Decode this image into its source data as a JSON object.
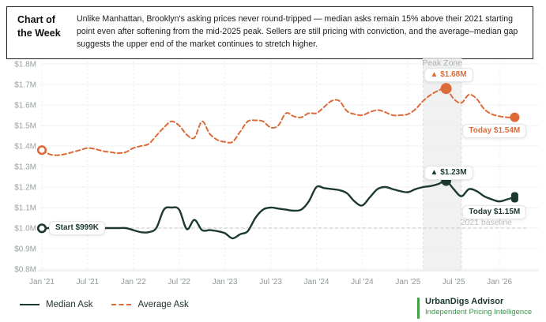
{
  "header": {
    "title": "Chart of the Week",
    "body": "Unlike Manhattan, Brooklyn's asking prices never round-tripped — median asks remain 15% above their 2021 starting point even after softening from the mid-2025 peak. Sellers are still pricing with conviction, and the average–median gap suggests the upper end of the market continues to stretch higher."
  },
  "chart_data": {
    "type": "line",
    "x_tick_labels": [
      "Jan '21",
      "Jul '21",
      "Jan '22",
      "Jul '22",
      "Jan '23",
      "Jul '23",
      "Jan '24",
      "Jul '24",
      "Jan '25",
      "Jul '25",
      "Jan '26"
    ],
    "x_tick_month_index": [
      0,
      6,
      12,
      18,
      24,
      30,
      36,
      42,
      48,
      54,
      60
    ],
    "y_ticks": [
      1.8,
      1.7,
      1.6,
      1.5,
      1.4,
      1.3,
      1.2,
      1.1,
      1.0,
      0.9,
      0.8
    ],
    "y_tick_labels": [
      "$1.8M",
      "$1.7M",
      "$1.6M",
      "$1.5M",
      "$1.4M",
      "$1.3M",
      "$1.2M",
      "$1.1M",
      "$1.0M",
      "$0.9M",
      "$0.8M"
    ],
    "ylim": [
      0.8,
      1.8
    ],
    "unit": "millions USD",
    "grid": true,
    "peak_zone": {
      "start_month": 50,
      "end_month": 55,
      "label": "Peak Zone"
    },
    "baseline": {
      "value": 1.0,
      "label": "2021 baseline"
    },
    "series": [
      {
        "name": "Median Ask",
        "color": "#1C3931",
        "style": "solid",
        "values": [
          0.999,
          1.0,
          1.0,
          1.0,
          1.0,
          1.0,
          1.0,
          1.0,
          1.0,
          1.0,
          1.0,
          1.0,
          0.99,
          0.98,
          0.98,
          1.0,
          1.09,
          1.1,
          1.09,
          0.995,
          1.04,
          0.99,
          0.99,
          0.985,
          0.975,
          0.95,
          0.97,
          0.985,
          1.05,
          1.09,
          1.1,
          1.095,
          1.09,
          1.085,
          1.09,
          1.13,
          1.2,
          1.195,
          1.19,
          1.185,
          1.17,
          1.13,
          1.11,
          1.15,
          1.19,
          1.2,
          1.19,
          1.18,
          1.175,
          1.19,
          1.2,
          1.205,
          1.215,
          1.23,
          1.19,
          1.155,
          1.19,
          1.18,
          1.155,
          1.14,
          1.13,
          1.14,
          1.15
        ]
      },
      {
        "name": "Average Ask",
        "color": "#DD6B38",
        "style": "dashed",
        "values": [
          1.38,
          1.36,
          1.355,
          1.36,
          1.37,
          1.38,
          1.39,
          1.385,
          1.375,
          1.37,
          1.365,
          1.37,
          1.39,
          1.4,
          1.41,
          1.45,
          1.49,
          1.52,
          1.5,
          1.455,
          1.44,
          1.52,
          1.46,
          1.43,
          1.42,
          1.42,
          1.47,
          1.52,
          1.525,
          1.52,
          1.49,
          1.5,
          1.56,
          1.545,
          1.54,
          1.56,
          1.56,
          1.59,
          1.62,
          1.62,
          1.57,
          1.555,
          1.55,
          1.565,
          1.575,
          1.565,
          1.55,
          1.55,
          1.555,
          1.58,
          1.62,
          1.65,
          1.67,
          1.68,
          1.63,
          1.61,
          1.65,
          1.63,
          1.58,
          1.555,
          1.545,
          1.54,
          1.54
        ]
      }
    ],
    "markers": [
      {
        "series": 0,
        "index": 0,
        "type": "open"
      },
      {
        "series": 1,
        "index": 0,
        "type": "open"
      },
      {
        "series": 0,
        "index": 53,
        "type": "peak"
      },
      {
        "series": 1,
        "index": 53,
        "type": "peak"
      },
      {
        "series": 0,
        "index": 62,
        "type": "end"
      },
      {
        "series": 1,
        "index": 62,
        "type": "end"
      }
    ],
    "annotations": {
      "start": "Start $999K",
      "median_peak": "▲ $1.23M",
      "median_today": "Today $1.15M",
      "average_peak": "▲ $1.68M",
      "average_today": "Today $1.54M"
    }
  },
  "footer": {
    "brand_title": "UrbanDigs Advisor",
    "brand_sub": "Independent Pricing Intelligence"
  }
}
